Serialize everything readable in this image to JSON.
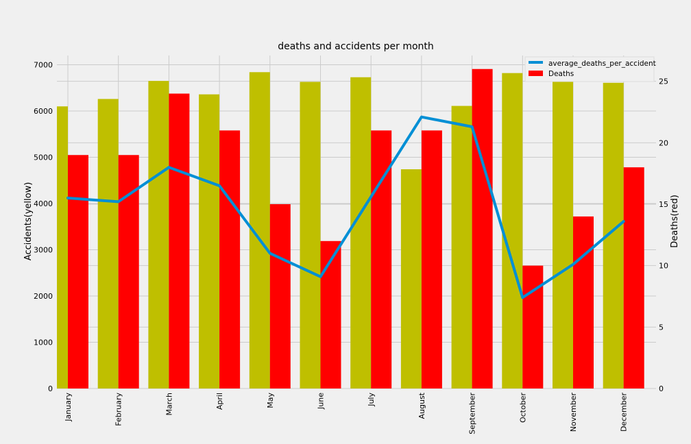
{
  "chart_data": {
    "type": "bar",
    "title": "deaths and accidents per month",
    "categories": [
      "January",
      "February",
      "March",
      "April",
      "May",
      "June",
      "July",
      "August",
      "September",
      "October",
      "November",
      "December"
    ],
    "y_left": {
      "label": "Accidents(yellow)",
      "lim": [
        0,
        7200
      ],
      "ticks": [
        0,
        1000,
        2000,
        3000,
        4000,
        5000,
        6000,
        7000
      ]
    },
    "y_right": {
      "label": "Deaths(red)",
      "lim": [
        0,
        27.1
      ],
      "ticks": [
        0,
        5,
        10,
        15,
        20,
        25
      ]
    },
    "series": [
      {
        "name": "",
        "kind": "bar",
        "axis": "left",
        "color": "#bfbf00",
        "values": [
          6100,
          6260,
          6650,
          6360,
          6840,
          6630,
          6730,
          4740,
          6110,
          6820,
          6920,
          6610
        ]
      },
      {
        "name": "Deaths",
        "kind": "bar",
        "axis": "right",
        "color": "#ff0000",
        "values": [
          19,
          19,
          24,
          21,
          15,
          12,
          21,
          21,
          26,
          10,
          14,
          18
        ]
      },
      {
        "name": "average_deaths_per_accident",
        "kind": "line",
        "axis": "right",
        "color": "#008fd5",
        "values": [
          15.5,
          15.2,
          18.0,
          16.5,
          11.0,
          9.1,
          15.6,
          22.1,
          21.3,
          7.4,
          10.1,
          13.6
        ]
      }
    ],
    "grid": true,
    "legend": "top-right"
  }
}
